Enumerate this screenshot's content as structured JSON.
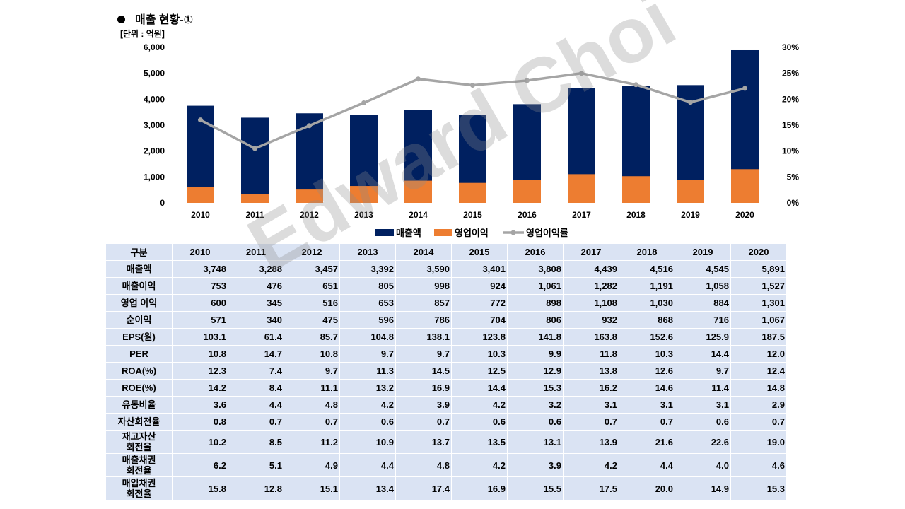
{
  "header": {
    "title": "매출 현황-①",
    "unit": "[단위 : 억원]"
  },
  "watermark": "Edward Choi",
  "colors": {
    "revenue": "#002060",
    "operating_profit": "#ED7D31",
    "op_margin_line": "#A5A5A5",
    "table_bg": "#DAE3F3"
  },
  "chart_data": {
    "type": "bar",
    "categories": [
      "2010",
      "2011",
      "2012",
      "2013",
      "2014",
      "2015",
      "2016",
      "2017",
      "2018",
      "2019",
      "2020"
    ],
    "series": [
      {
        "name": "매출액",
        "type": "bar",
        "axis": "left",
        "values": [
          3748,
          3288,
          3457,
          3392,
          3590,
          3401,
          3808,
          4439,
          4516,
          4545,
          5891
        ]
      },
      {
        "name": "영업이익",
        "type": "bar",
        "axis": "left",
        "values": [
          600,
          345,
          516,
          653,
          857,
          772,
          898,
          1108,
          1030,
          884,
          1301
        ]
      },
      {
        "name": "영업이익률",
        "type": "line",
        "axis": "right",
        "values": [
          16.0,
          10.5,
          14.9,
          19.3,
          23.9,
          22.7,
          23.6,
          25.0,
          22.8,
          19.4,
          22.1
        ]
      }
    ],
    "y_left": {
      "min": 0,
      "max": 6000,
      "ticks": [
        "0",
        "1,000",
        "2,000",
        "3,000",
        "4,000",
        "5,000",
        "6,000"
      ]
    },
    "y_right": {
      "min": 0,
      "max": 30,
      "ticks": [
        "0%",
        "5%",
        "10%",
        "15%",
        "20%",
        "25%",
        "30%"
      ]
    },
    "legend": {
      "position": "bottom",
      "items": [
        "매출액",
        "영업이익",
        "영업이익률"
      ]
    }
  },
  "table": {
    "header": [
      "구분",
      "2010",
      "2011",
      "2012",
      "2013",
      "2014",
      "2015",
      "2016",
      "2017",
      "2018",
      "2019",
      "2020"
    ],
    "rows": [
      {
        "label": [
          "매출액"
        ],
        "values": [
          "3,748",
          "3,288",
          "3,457",
          "3,392",
          "3,590",
          "3,401",
          "3,808",
          "4,439",
          "4,516",
          "4,545",
          "5,891"
        ]
      },
      {
        "label": [
          "매출이익"
        ],
        "values": [
          "753",
          "476",
          "651",
          "805",
          "998",
          "924",
          "1,061",
          "1,282",
          "1,191",
          "1,058",
          "1,527"
        ]
      },
      {
        "label": [
          "영업 이익"
        ],
        "values": [
          "600",
          "345",
          "516",
          "653",
          "857",
          "772",
          "898",
          "1,108",
          "1,030",
          "884",
          "1,301"
        ]
      },
      {
        "label": [
          "순이익"
        ],
        "values": [
          "571",
          "340",
          "475",
          "596",
          "786",
          "704",
          "806",
          "932",
          "868",
          "716",
          "1,067"
        ]
      },
      {
        "label": [
          "EPS(원)"
        ],
        "values": [
          "103.1",
          "61.4",
          "85.7",
          "104.8",
          "138.1",
          "123.8",
          "141.8",
          "163.8",
          "152.6",
          "125.9",
          "187.5"
        ]
      },
      {
        "label": [
          "PER"
        ],
        "values": [
          "10.8",
          "14.7",
          "10.8",
          "9.7",
          "9.7",
          "10.3",
          "9.9",
          "11.8",
          "10.3",
          "14.4",
          "12.0"
        ]
      },
      {
        "label": [
          "ROA(%)"
        ],
        "values": [
          "12.3",
          "7.4",
          "9.7",
          "11.3",
          "14.5",
          "12.5",
          "12.9",
          "13.8",
          "12.6",
          "9.7",
          "12.4"
        ]
      },
      {
        "label": [
          "ROE(%)"
        ],
        "values": [
          "14.2",
          "8.4",
          "11.1",
          "13.2",
          "16.9",
          "14.4",
          "15.3",
          "16.2",
          "14.6",
          "11.4",
          "14.8"
        ]
      },
      {
        "label": [
          "유동비율"
        ],
        "values": [
          "3.6",
          "4.4",
          "4.8",
          "4.2",
          "3.9",
          "4.2",
          "3.2",
          "3.1",
          "3.1",
          "3.1",
          "2.9"
        ]
      },
      {
        "label": [
          "자산회전율"
        ],
        "values": [
          "0.8",
          "0.7",
          "0.7",
          "0.6",
          "0.7",
          "0.6",
          "0.6",
          "0.7",
          "0.7",
          "0.6",
          "0.7"
        ]
      },
      {
        "label": [
          "재고자산",
          "회전율"
        ],
        "values": [
          "10.2",
          "8.5",
          "11.2",
          "10.9",
          "13.7",
          "13.5",
          "13.1",
          "13.9",
          "21.6",
          "22.6",
          "19.0"
        ]
      },
      {
        "label": [
          "매출채권",
          "회전율"
        ],
        "values": [
          "6.2",
          "5.1",
          "4.9",
          "4.4",
          "4.8",
          "4.2",
          "3.9",
          "4.2",
          "4.4",
          "4.0",
          "4.6"
        ]
      },
      {
        "label": [
          "매입채권",
          "회전율"
        ],
        "values": [
          "15.8",
          "12.8",
          "15.1",
          "13.4",
          "17.4",
          "16.9",
          "15.5",
          "17.5",
          "20.0",
          "14.9",
          "15.3"
        ]
      }
    ]
  }
}
